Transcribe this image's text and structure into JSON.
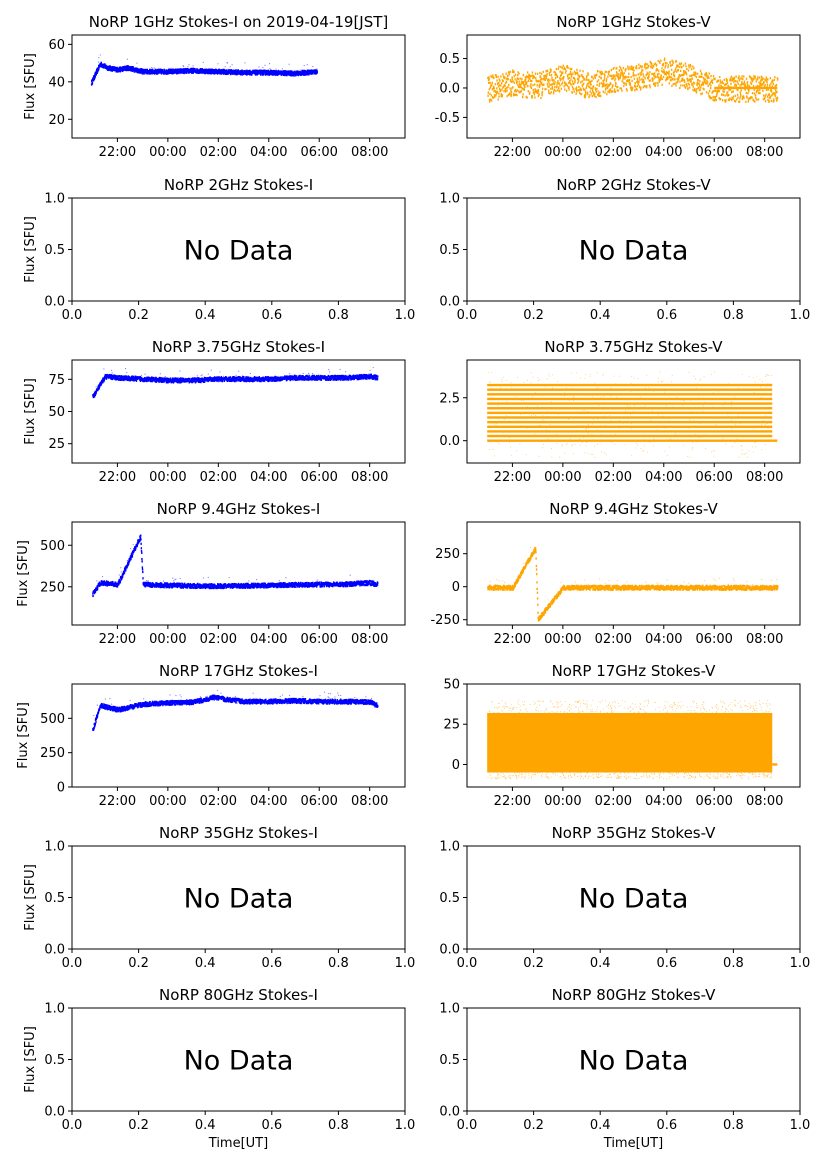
{
  "figure": {
    "time_label": "Time[UT]",
    "flux_label": "Flux [SFU]",
    "no_data_text": "No Data"
  },
  "chart_data": [
    {
      "id": "p1i",
      "type": "scatter",
      "title": "NoRP 1GHz Stokes-I on 2019-04-19[JST]",
      "ylabel": "Flux [SFU]",
      "color": "#0000ff",
      "ylim": [
        10,
        65
      ],
      "yticks": [
        20,
        40,
        60
      ],
      "xticks": [
        "22:00",
        "00:00",
        "02:00",
        "04:00",
        "06:00",
        "08:00"
      ],
      "series": [
        {
          "x": [
            20.95,
            21.3,
            21.6,
            22.0,
            22.4,
            23.0,
            24.0,
            25.0,
            26.0,
            27.0,
            28.0,
            29.0,
            29.9
          ],
          "y": [
            40,
            50,
            48,
            47,
            48,
            46,
            46,
            46.5,
            46,
            45.5,
            45.5,
            45,
            46
          ]
        }
      ]
    },
    {
      "id": "p1v",
      "type": "scatter",
      "title": "NoRP 1GHz Stokes-V",
      "color": "#ffa500",
      "ylim": [
        -0.85,
        0.9
      ],
      "yticks": [
        -0.5,
        0.0,
        0.5
      ],
      "xticks": [
        "22:00",
        "00:00",
        "02:00",
        "04:00",
        "06:00",
        "08:00"
      ],
      "series": [
        {
          "x": [
            21.0,
            22.0,
            23.0,
            24.0,
            25.0,
            26.0,
            27.0,
            28.0,
            29.0,
            30.0,
            31.0,
            32.0,
            32.5
          ],
          "y": [
            0.0,
            0.1,
            0.05,
            0.2,
            0.05,
            0.15,
            0.2,
            0.3,
            0.2,
            0.0,
            0.0,
            0.0,
            0.0
          ]
        }
      ]
    },
    {
      "id": "p2i",
      "type": "scatter",
      "title": "NoRP 2GHz Stokes-I",
      "ylabel": "Flux [SFU]",
      "no_data": true,
      "ylim": [
        0,
        1
      ],
      "yticks": [
        0.0,
        0.5,
        1.0
      ],
      "xticks": [
        "0.0",
        "0.2",
        "0.4",
        "0.6",
        "0.8",
        "1.0"
      ]
    },
    {
      "id": "p2v",
      "type": "scatter",
      "title": "NoRP 2GHz Stokes-V",
      "no_data": true,
      "ylim": [
        0,
        1
      ],
      "yticks": [
        0.0,
        0.5,
        1.0
      ],
      "xticks": [
        "0.0",
        "0.2",
        "0.4",
        "0.6",
        "0.8",
        "1.0"
      ]
    },
    {
      "id": "p3i",
      "type": "scatter",
      "title": "NoRP 3.75GHz Stokes-I",
      "ylabel": "Flux [SFU]",
      "color": "#0000ff",
      "ylim": [
        10,
        90
      ],
      "yticks": [
        25,
        50,
        75
      ],
      "xticks": [
        "22:00",
        "00:00",
        "02:00",
        "04:00",
        "06:00",
        "08:00"
      ],
      "series": [
        {
          "x": [
            21.0,
            21.5,
            22.0,
            23.0,
            24.0,
            25.0,
            26.0,
            27.0,
            28.0,
            29.0,
            30.0,
            31.0,
            32.0,
            32.3
          ],
          "y": [
            62,
            78,
            77,
            76,
            75,
            75,
            76,
            76,
            76,
            77,
            77,
            77,
            78,
            77
          ]
        }
      ]
    },
    {
      "id": "p3v",
      "type": "scatter",
      "title": "NoRP 3.75GHz Stokes-V",
      "color": "#ffa500",
      "ylim": [
        -1.3,
        4.7
      ],
      "yticks": [
        0.0,
        2.5
      ],
      "xticks": [
        "22:00",
        "00:00",
        "02:00",
        "04:00",
        "06:00",
        "08:00"
      ],
      "series": [
        {
          "x": [
            21.0,
            32.3
          ],
          "y": [
            0.0,
            3.2
          ]
        }
      ]
    },
    {
      "id": "p9i",
      "type": "scatter",
      "title": "NoRP 9.4GHz Stokes-I",
      "ylabel": "Flux [SFU]",
      "color": "#0000ff",
      "ylim": [
        20,
        640
      ],
      "yticks": [
        250,
        500
      ],
      "xticks": [
        "22:00",
        "00:00",
        "02:00",
        "04:00",
        "06:00",
        "08:00"
      ],
      "series": [
        {
          "x": [
            21.0,
            21.3,
            22.0,
            22.9,
            23.0,
            24.0,
            25.0,
            26.0,
            27.0,
            28.0,
            29.0,
            30.0,
            31.0,
            32.0,
            32.3
          ],
          "y": [
            210,
            280,
            270,
            560,
            270,
            265,
            262,
            260,
            262,
            265,
            268,
            270,
            272,
            280,
            270
          ]
        }
      ]
    },
    {
      "id": "p9v",
      "type": "scatter",
      "title": "NoRP 9.4GHz Stokes-V",
      "color": "#ffa500",
      "ylim": [
        -290,
        490
      ],
      "yticks": [
        -250,
        0,
        250
      ],
      "xticks": [
        "22:00",
        "00:00",
        "02:00",
        "04:00",
        "06:00",
        "08:00"
      ],
      "series": [
        {
          "x": [
            21.0,
            22.0,
            22.9,
            23.0,
            24.0,
            26.0,
            28.0,
            30.0,
            32.0,
            32.5
          ],
          "y": [
            0,
            0,
            300,
            -240,
            0,
            0,
            0,
            0,
            0,
            0
          ]
        }
      ]
    },
    {
      "id": "p17i",
      "type": "scatter",
      "title": "NoRP 17GHz Stokes-I",
      "ylabel": "Flux [SFU]",
      "color": "#0000ff",
      "ylim": [
        0,
        750
      ],
      "yticks": [
        0,
        250,
        500
      ],
      "xticks": [
        "22:00",
        "00:00",
        "02:00",
        "04:00",
        "06:00",
        "08:00"
      ],
      "series": [
        {
          "x": [
            21.0,
            21.3,
            22.0,
            23.0,
            24.0,
            25.0,
            25.8,
            26.5,
            27.0,
            28.0,
            29.0,
            30.0,
            31.0,
            32.0,
            32.3
          ],
          "y": [
            420,
            600,
            570,
            610,
            620,
            625,
            660,
            640,
            630,
            630,
            635,
            630,
            630,
            625,
            600
          ]
        }
      ]
    },
    {
      "id": "p17v",
      "type": "scatter",
      "title": "NoRP 17GHz Stokes-V",
      "color": "#ffa500",
      "ylim": [
        -14,
        50
      ],
      "yticks": [
        0,
        25,
        50
      ],
      "xticks": [
        "22:00",
        "00:00",
        "02:00",
        "04:00",
        "06:00",
        "08:00"
      ],
      "series": [
        {
          "x": [
            21.0,
            32.3
          ],
          "y": [
            0,
            30
          ]
        }
      ]
    },
    {
      "id": "p35i",
      "type": "scatter",
      "title": "NoRP 35GHz Stokes-I",
      "ylabel": "Flux [SFU]",
      "no_data": true,
      "ylim": [
        0,
        1
      ],
      "yticks": [
        0.0,
        0.5,
        1.0
      ],
      "xticks": [
        "0.0",
        "0.2",
        "0.4",
        "0.6",
        "0.8",
        "1.0"
      ]
    },
    {
      "id": "p35v",
      "type": "scatter",
      "title": "NoRP 35GHz Stokes-V",
      "no_data": true,
      "ylim": [
        0,
        1
      ],
      "yticks": [
        0.0,
        0.5,
        1.0
      ],
      "xticks": [
        "0.0",
        "0.2",
        "0.4",
        "0.6",
        "0.8",
        "1.0"
      ]
    },
    {
      "id": "p80i",
      "type": "scatter",
      "title": "NoRP 80GHz Stokes-I",
      "ylabel": "Flux [SFU]",
      "xlabel": "Time[UT]",
      "no_data": true,
      "ylim": [
        0,
        1
      ],
      "yticks": [
        0.0,
        0.5,
        1.0
      ],
      "xticks": [
        "0.0",
        "0.2",
        "0.4",
        "0.6",
        "0.8",
        "1.0"
      ]
    },
    {
      "id": "p80v",
      "type": "scatter",
      "title": "NoRP 80GHz Stokes-V",
      "xlabel": "Time[UT]",
      "no_data": true,
      "ylim": [
        0,
        1
      ],
      "yticks": [
        0.0,
        0.5,
        1.0
      ],
      "xticks": [
        "0.0",
        "0.2",
        "0.4",
        "0.6",
        "0.8",
        "1.0"
      ]
    }
  ]
}
